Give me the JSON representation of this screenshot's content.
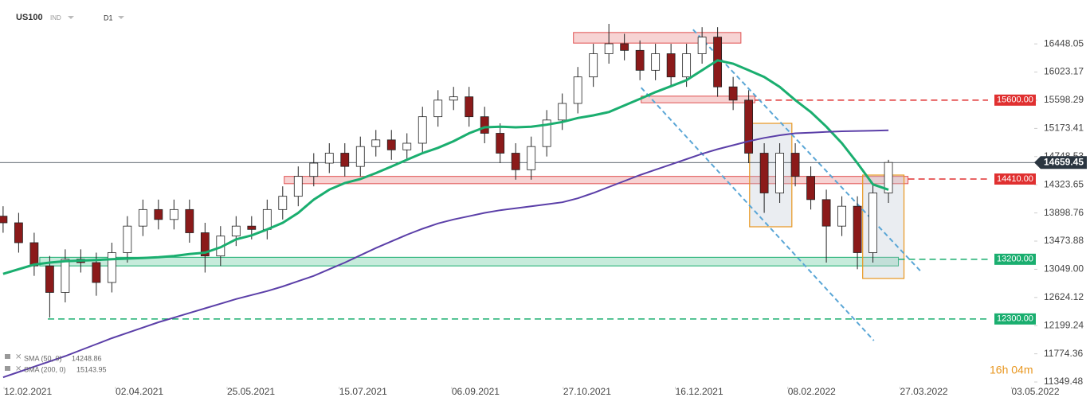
{
  "chart_data": {
    "type": "candlestick",
    "symbol": "US100",
    "instrument_type": "IND",
    "timeframe": "D1",
    "countdown": "16h 04m",
    "up_color": "#ffffff",
    "down_color": "#8b1a1a",
    "x": [
      1,
      6,
      11,
      16,
      21,
      26,
      31,
      36,
      41,
      46,
      51,
      56,
      61,
      66,
      71,
      76,
      81,
      86,
      91,
      96,
      101,
      106,
      111,
      116,
      121,
      126,
      131,
      136,
      141,
      146,
      151,
      156,
      161,
      166,
      171,
      176,
      181,
      186,
      191,
      196,
      201,
      206,
      211,
      216,
      221,
      226,
      231,
      236,
      241,
      246,
      251,
      256,
      261,
      266,
      271,
      276,
      281,
      286
    ],
    "open": [
      13850,
      13750,
      13450,
      13100,
      12700,
      13200,
      13150,
      12850,
      13300,
      13700,
      13950,
      13800,
      13950,
      13600,
      13250,
      13550,
      13700,
      13650,
      13950,
      14150,
      14450,
      14650,
      14800,
      14600,
      14900,
      15000,
      14850,
      14950,
      15350,
      15600,
      15650,
      15350,
      15100,
      14800,
      14550,
      14900,
      15300,
      15550,
      15950,
      16300,
      16450,
      16350,
      16050,
      16300,
      15950,
      16300,
      16550,
      15800,
      15600,
      14800,
      14200,
      14800,
      14450,
      14100,
      13700,
      14000,
      13300,
      14200
    ],
    "high": [
      14000,
      13900,
      13600,
      13250,
      13350,
      13350,
      13300,
      13450,
      13850,
      14100,
      14100,
      14100,
      14100,
      13750,
      13700,
      13850,
      13850,
      14100,
      14300,
      14600,
      14800,
      14950,
      14950,
      15050,
      15150,
      15150,
      15100,
      15500,
      15750,
      15800,
      15800,
      15500,
      15250,
      14950,
      15050,
      15450,
      15700,
      16100,
      16450,
      16750,
      16600,
      16500,
      16450,
      16450,
      16450,
      16700,
      16700,
      15950,
      15750,
      14950,
      14950,
      14950,
      14600,
      14250,
      14150,
      14150,
      14350,
      14700
    ],
    "low": [
      13600,
      13300,
      12950,
      12320,
      12550,
      13000,
      12650,
      12700,
      13150,
      13550,
      13650,
      13650,
      13450,
      13000,
      13100,
      13400,
      13500,
      13500,
      13800,
      14000,
      14300,
      14500,
      14450,
      14450,
      14750,
      14700,
      14700,
      14800,
      15200,
      15450,
      15200,
      14950,
      14650,
      14400,
      14400,
      14750,
      15150,
      15400,
      15800,
      16150,
      16200,
      15900,
      15900,
      15800,
      15800,
      16150,
      15650,
      15450,
      14650,
      13900,
      14050,
      14300,
      13950,
      13150,
      13550,
      13050,
      13150,
      14050
    ],
    "close": [
      13750,
      13450,
      13100,
      12700,
      13200,
      13150,
      12850,
      13300,
      13700,
      13950,
      13800,
      13950,
      13600,
      13250,
      13550,
      13700,
      13650,
      13950,
      14150,
      14450,
      14650,
      14800,
      14600,
      14900,
      15000,
      14850,
      14950,
      15350,
      15600,
      15650,
      15350,
      15100,
      14800,
      14550,
      14900,
      15300,
      15550,
      15950,
      16300,
      16450,
      16350,
      16050,
      16300,
      15950,
      16300,
      16550,
      15800,
      15600,
      14800,
      14200,
      14800,
      14450,
      14100,
      13700,
      14000,
      13300,
      14200,
      14659.45
    ],
    "series": [
      {
        "name": "SMA (50, 0)",
        "color": "#1aae6f",
        "values": [
          12980,
          13050,
          13120,
          13150,
          13170,
          13180,
          13190,
          13200,
          13210,
          13220,
          13230,
          13250,
          13280,
          13300,
          13380,
          13500,
          13560,
          13650,
          13750,
          13900,
          14100,
          14250,
          14350,
          14410,
          14500,
          14600,
          14700,
          14800,
          14880,
          14980,
          15100,
          15190,
          15200,
          15190,
          15200,
          15230,
          15270,
          15330,
          15370,
          15420,
          15520,
          15620,
          15720,
          15810,
          15900,
          16050,
          16200,
          16150,
          16050,
          15950,
          15800,
          15600,
          15420,
          15200,
          14950,
          14650,
          14330,
          14248.86
        ]
      },
      {
        "name": "SMA (200, 0)",
        "color": "#5b3fa8",
        "values": [
          11420,
          11500,
          11580,
          11660,
          11740,
          11830,
          11920,
          12010,
          12090,
          12170,
          12250,
          12320,
          12390,
          12460,
          12530,
          12600,
          12660,
          12720,
          12790,
          12870,
          12950,
          13050,
          13150,
          13260,
          13370,
          13470,
          13570,
          13660,
          13740,
          13800,
          13850,
          13900,
          13940,
          13970,
          14000,
          14030,
          14060,
          14120,
          14200,
          14290,
          14380,
          14470,
          14550,
          14630,
          14710,
          14790,
          14860,
          14920,
          14980,
          15030,
          15070,
          15100,
          15110,
          15120,
          15130,
          15135,
          15140,
          15143.95
        ]
      }
    ],
    "xlim": [
      0,
      336
    ],
    "xticks": [
      {
        "value": 1.3,
        "label": "12.02.2021"
      },
      {
        "value": 37.2,
        "label": "02.04.2021"
      },
      {
        "value": 73.1,
        "label": "25.05.2021"
      },
      {
        "value": 109.2,
        "label": "15.07.2021"
      },
      {
        "value": 145.4,
        "label": "06.09.2021"
      },
      {
        "value": 181.3,
        "label": "27.10.2021"
      },
      {
        "value": 217.4,
        "label": "16.12.2021"
      },
      {
        "value": 253.6,
        "label": "08.02.2022"
      },
      {
        "value": 289.7,
        "label": "27.03.2022"
      },
      {
        "value": 325.6,
        "label": "03.05.2022"
      }
    ],
    "ylim": [
      11230,
      17110
    ],
    "yticks": [
      16448.05,
      16023.17,
      15598.29,
      15173.41,
      14748.53,
      14323.65,
      13898.76,
      13473.88,
      {
        "value": 13049,
        "label": "13049.00"
      },
      12624.12,
      12199.24,
      11774.36,
      11349.48
    ],
    "zones": [
      {
        "x": [
          184.6,
          238.5
        ],
        "y": [
          16460,
          16620
        ],
        "color": "#e05050"
      },
      {
        "x": [
          206.4,
          243
        ],
        "y": [
          15560,
          15660
        ],
        "color": "#e05050"
      },
      {
        "x": [
          91.5,
          292.3
        ],
        "y": [
          14340,
          14450
        ],
        "color": "#e05050"
      },
      {
        "x": [
          12.8,
          289.2
        ],
        "y": [
          13100,
          13230
        ],
        "color": "#1aae6f"
      }
    ],
    "boxes": [
      {
        "x": [
          241.3,
          254.9
        ],
        "y": [
          13690,
          15250
        ],
        "color": "#e8961e"
      },
      {
        "x": [
          277.7,
          291
        ],
        "y": [
          12910,
          14470
        ],
        "color": "#e8961e"
      }
    ],
    "trendlines": [
      {
        "x": [
          223.1,
          296.9
        ],
        "y": [
          16664,
          12993
        ],
        "color": "#5aa6d6"
      },
      {
        "x": [
          206.4,
          281.3
        ],
        "y": [
          15788,
          11974
        ],
        "color": "#5aa6d6"
      }
    ],
    "levels": [
      {
        "value": 15600,
        "label": "15600.00",
        "color": "#e03030",
        "x_start": 243
      },
      {
        "value": 14410,
        "label": "14410.00",
        "color": "#e03030",
        "x_start": 292.3
      },
      {
        "value": 13200,
        "label": "13200.00",
        "color": "#1aae6f",
        "x_start": 289.2
      },
      {
        "value": 12300,
        "label": "12300.00",
        "color": "#1aae6f",
        "x_start": 15.4
      }
    ],
    "last_price": {
      "value": 14659.45,
      "label": "14659.45",
      "color": "#2a3540"
    }
  }
}
